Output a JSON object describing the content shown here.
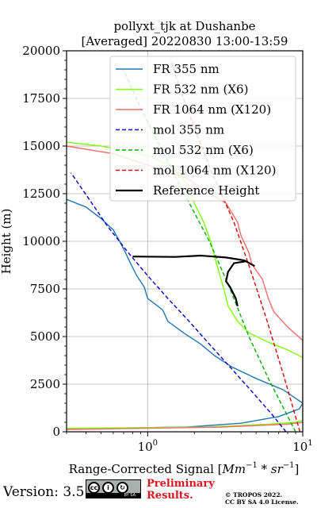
{
  "chart_data": {
    "type": "line",
    "title": "pollyxt_tjk at Dushanbe",
    "subtitle": "[Averaged] 20220830 13:00-13:59",
    "xlabel": "Range-Corrected Signal [Mm⁻¹ * sr⁻¹]",
    "xlabel_parts": {
      "prefix": "Range-Corrected Signal [",
      "unit1": "Mm",
      "exp1": "−1",
      "mid": " * ",
      "unit2": "sr",
      "exp2": "−1",
      "suffix": "]"
    },
    "ylabel": "Height (m)",
    "xscale": "log",
    "xlim": [
      0.3,
      10
    ],
    "ylim": [
      0,
      20000
    ],
    "xticks": [
      {
        "value": 1,
        "base": "10",
        "exp": "0"
      },
      {
        "value": 10,
        "base": "10",
        "exp": "1"
      }
    ],
    "yticks": [
      0,
      2500,
      5000,
      7500,
      10000,
      12500,
      15000,
      17500,
      20000
    ],
    "grid": true,
    "legend_location": "upper-right",
    "series": [
      {
        "name": "FR 355 nm",
        "color": "#1f77b4",
        "style": "solid",
        "points": [
          [
            0.3,
            150
          ],
          [
            1.8,
            250
          ],
          [
            4,
            450
          ],
          [
            7,
            800
          ],
          [
            9.5,
            1200
          ],
          [
            10,
            1500
          ],
          [
            7.5,
            2200
          ],
          [
            5,
            2800
          ],
          [
            3.5,
            3400
          ],
          [
            2.7,
            4000
          ],
          [
            2.2,
            4600
          ],
          [
            1.7,
            5200
          ],
          [
            1.35,
            5800
          ],
          [
            1.25,
            6400
          ],
          [
            1.0,
            7000
          ],
          [
            0.95,
            7600
          ],
          [
            0.85,
            8200
          ],
          [
            0.78,
            8800
          ],
          [
            0.72,
            9400
          ],
          [
            0.66,
            10000
          ],
          [
            0.6,
            10600
          ],
          [
            0.5,
            11200
          ],
          [
            0.4,
            11800
          ],
          [
            0.3,
            12200
          ]
        ]
      },
      {
        "name": "FR 532 nm (X6)",
        "color": "#7fff00",
        "style": "solid",
        "points": [
          [
            0.3,
            180
          ],
          [
            2.5,
            250
          ],
          [
            6,
            400
          ],
          [
            9,
            500
          ],
          [
            10,
            600
          ],
          [
            10,
            3900
          ],
          [
            8,
            4300
          ],
          [
            6,
            4700
          ],
          [
            4.5,
            5200
          ],
          [
            3.8,
            5800
          ],
          [
            3.3,
            6600
          ],
          [
            3.1,
            7500
          ],
          [
            2.9,
            8300
          ],
          [
            2.7,
            9200
          ],
          [
            2.55,
            10000
          ],
          [
            2.3,
            11000
          ],
          [
            2.0,
            12000
          ],
          [
            1.8,
            13000
          ],
          [
            1.4,
            14000
          ],
          [
            1.0,
            14500
          ],
          [
            0.5,
            15000
          ],
          [
            0.3,
            15200
          ]
        ]
      },
      {
        "name": "FR 1064 nm (X120)",
        "color": "#f46b6b",
        "style": "solid",
        "points": [
          [
            0.3,
            120
          ],
          [
            3,
            250
          ],
          [
            8,
            400
          ],
          [
            10,
            500
          ],
          [
            10,
            4800
          ],
          [
            8,
            5500
          ],
          [
            6.5,
            6300
          ],
          [
            6,
            7000
          ],
          [
            5.5,
            8000
          ],
          [
            4.7,
            8800
          ],
          [
            4.5,
            9400
          ],
          [
            4,
            10300
          ],
          [
            3.8,
            11000
          ],
          [
            3.2,
            12000
          ],
          [
            2.4,
            12600
          ],
          [
            1.8,
            13300
          ],
          [
            1.0,
            14000
          ],
          [
            0.6,
            14600
          ],
          [
            0.3,
            15000
          ]
        ]
      },
      {
        "name": "mol 355 nm",
        "color": "#0000cc",
        "style": "dashed",
        "points": [
          [
            7.8,
            0
          ],
          [
            6.2,
            1000
          ],
          [
            4.6,
            2200
          ],
          [
            3.4,
            3400
          ],
          [
            2.5,
            4600
          ],
          [
            1.85,
            5800
          ],
          [
            1.35,
            7000
          ],
          [
            1.0,
            8200
          ],
          [
            0.75,
            9400
          ],
          [
            0.55,
            10800
          ],
          [
            0.42,
            12200
          ],
          [
            0.32,
            13600
          ]
        ]
      },
      {
        "name": "mol 532 nm (X6)",
        "color": "#00b000",
        "style": "dashed",
        "points": [
          [
            9.0,
            0
          ],
          [
            6.0,
            2800
          ],
          [
            4.5,
            5000
          ],
          [
            3.4,
            7500
          ],
          [
            2.5,
            10000
          ],
          [
            1.6,
            13000
          ],
          [
            1.2,
            15000
          ],
          [
            0.9,
            17000
          ],
          [
            0.7,
            19000
          ]
        ]
      },
      {
        "name": "mol 1064 nm (X120)",
        "color": "#d40000",
        "style": "dashed",
        "points": [
          [
            9.6,
            0
          ],
          [
            7.5,
            3000
          ],
          [
            5.8,
            6000
          ],
          [
            4.6,
            8500
          ],
          [
            3.6,
            11000
          ],
          [
            2.6,
            13600
          ],
          [
            2.1,
            15500
          ],
          [
            1.7,
            17500
          ],
          [
            1.4,
            19500
          ]
        ]
      },
      {
        "name": "Reference Height",
        "color": "#000000",
        "style": "solid",
        "points": [
          [
            0.8,
            9200
          ],
          [
            1.5,
            9180
          ],
          [
            2.2,
            9250
          ],
          [
            3.2,
            9150
          ],
          [
            4.2,
            9000
          ],
          [
            4.9,
            8700
          ],
          [
            4.3,
            8950
          ],
          [
            3.6,
            8850
          ],
          [
            3.3,
            8400
          ],
          [
            3.2,
            7900
          ],
          [
            3.4,
            7600
          ],
          [
            3.7,
            7000
          ],
          [
            3.8,
            6600
          ]
        ]
      }
    ]
  },
  "footer": {
    "version": "Version: 3.5",
    "cc_label": "BY  SA",
    "preliminary_line1": "Preliminary",
    "preliminary_line2": "Results.",
    "copyright_line1": "© TROPOS 2022.",
    "copyright_line2": "CC BY SA 4.0 License."
  }
}
